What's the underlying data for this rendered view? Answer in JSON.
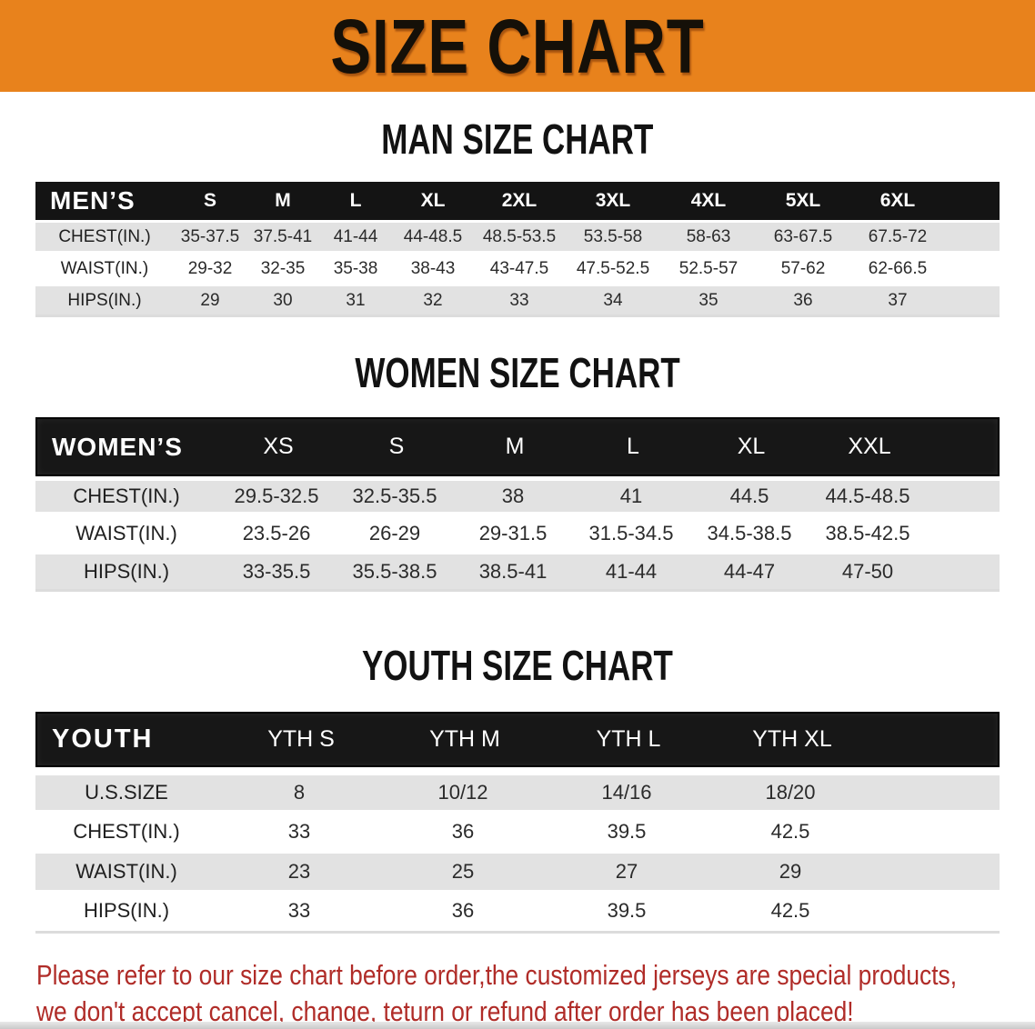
{
  "banner": {
    "title": "SIZE CHART",
    "bg_color": "#e8821c"
  },
  "sections": {
    "men": {
      "heading": "MAN SIZE CHART",
      "table": {
        "header_label": "MEN’S",
        "sizes": [
          "S",
          "M",
          "L",
          "XL",
          "2XL",
          "3XL",
          "4XL",
          "5XL",
          "6XL"
        ],
        "rows": [
          {
            "label": "CHEST(IN.)",
            "values": [
              "35-37.5",
              "37.5-41",
              "41-44",
              "44-48.5",
              "48.5-53.5",
              "53.5-58",
              "58-63",
              "63-67.5",
              "67.5-72"
            ]
          },
          {
            "label": "WAIST(IN.)",
            "values": [
              "29-32",
              "32-35",
              "35-38",
              "38-43",
              "43-47.5",
              "47.5-52.5",
              "52.5-57",
              "57-62",
              "62-66.5"
            ]
          },
          {
            "label": "HIPS(IN.)",
            "values": [
              "29",
              "30",
              "31",
              "32",
              "33",
              "34",
              "35",
              "36",
              "37"
            ]
          }
        ]
      }
    },
    "women": {
      "heading": "WOMEN SIZE CHART",
      "table": {
        "header_label": "WOMEN’S",
        "sizes": [
          "XS",
          "S",
          "M",
          "L",
          "XL",
          "XXL"
        ],
        "rows": [
          {
            "label": "CHEST(IN.)",
            "values": [
              "29.5-32.5",
              "32.5-35.5",
              "38",
              "41",
              "44.5",
              "44.5-48.5"
            ]
          },
          {
            "label": "WAIST(IN.)",
            "values": [
              "23.5-26",
              "26-29",
              "29-31.5",
              "31.5-34.5",
              "34.5-38.5",
              "38.5-42.5"
            ]
          },
          {
            "label": "HIPS(IN.)",
            "values": [
              "33-35.5",
              "35.5-38.5",
              "38.5-41",
              "41-44",
              "44-47",
              "47-50"
            ]
          }
        ]
      }
    },
    "youth": {
      "heading": "YOUTH SIZE CHART",
      "table": {
        "header_label": "YOUTH",
        "sizes": [
          "YTH S",
          "YTH M",
          "YTH L",
          "YTH XL"
        ],
        "rows": [
          {
            "label": "U.S.SIZE",
            "values": [
              "8",
              "10/12",
              "14/16",
              "18/20"
            ]
          },
          {
            "label": "CHEST(IN.)",
            "values": [
              "33",
              "36",
              "39.5",
              "42.5"
            ]
          },
          {
            "label": "WAIST(IN.)",
            "values": [
              "23",
              "25",
              "27",
              "29"
            ]
          },
          {
            "label": "HIPS(IN.)",
            "values": [
              "33",
              "36",
              "39.5",
              "42.5"
            ]
          }
        ]
      }
    }
  },
  "disclaimer": {
    "line1": "Please refer to our size chart before order,the customized jerseys are special products,",
    "line2": "we don't accept cancel, change, teturn or refund after order has been placed!",
    "color": "#b02c28"
  },
  "colors": {
    "banner_orange": "#e8821c",
    "header_bar_black": "#141414",
    "row_gray": "#e2e2e2",
    "disclaimer_red": "#b02c28"
  }
}
